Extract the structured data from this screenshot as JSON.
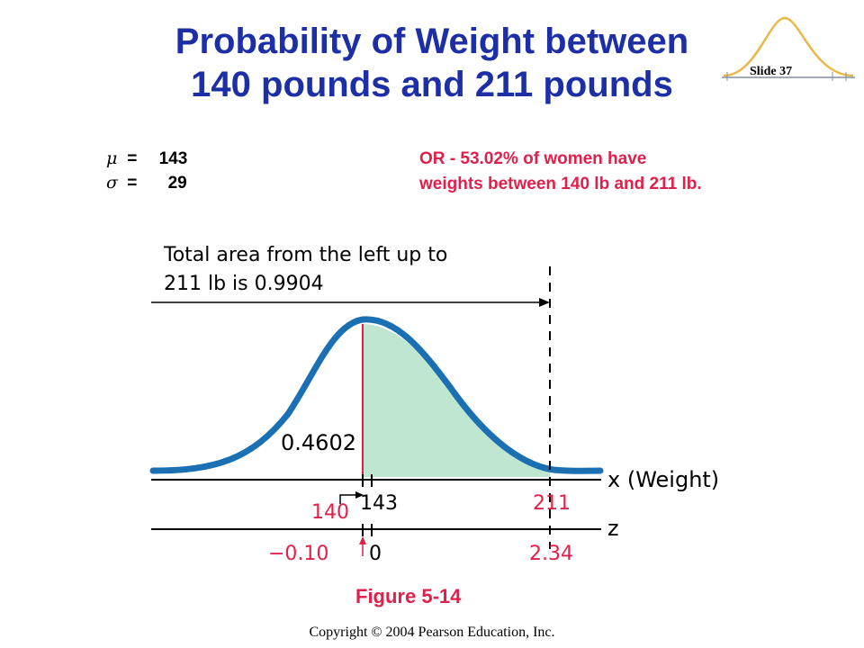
{
  "title_line1": "Probability of Weight between",
  "title_line2": "140 pounds and 211 pounds",
  "slide_label": "Slide 37",
  "params": {
    "mu_symbol": "μ",
    "mu_eq": "=",
    "mu_value": "143",
    "sigma_symbol": "σ",
    "sigma_eq": "=",
    "sigma_value": "29"
  },
  "note": {
    "line1": "OR -  53.02% of women have",
    "line2": "weights between 140 lb and 211 lb."
  },
  "figure": {
    "annotation_line1": "Total area from the left up to",
    "annotation_line2": "211 lb is 0.9904",
    "left_area": "0.4602",
    "x_axis_label": "x (Weight)",
    "z_axis_label": "z",
    "x_ticks": {
      "lower": "140",
      "mean": "143",
      "upper": "211"
    },
    "z_ticks": {
      "lower": "−0.10",
      "mean": "0",
      "upper": "2.34"
    },
    "colors": {
      "curve": "#1b6fb3",
      "shade": "#bfe6d0",
      "accent": "#e0204a",
      "title": "#1c2fa6"
    }
  },
  "caption": "Figure 5-14",
  "copyright": "Copyright © 2004 Pearson Education, Inc."
}
